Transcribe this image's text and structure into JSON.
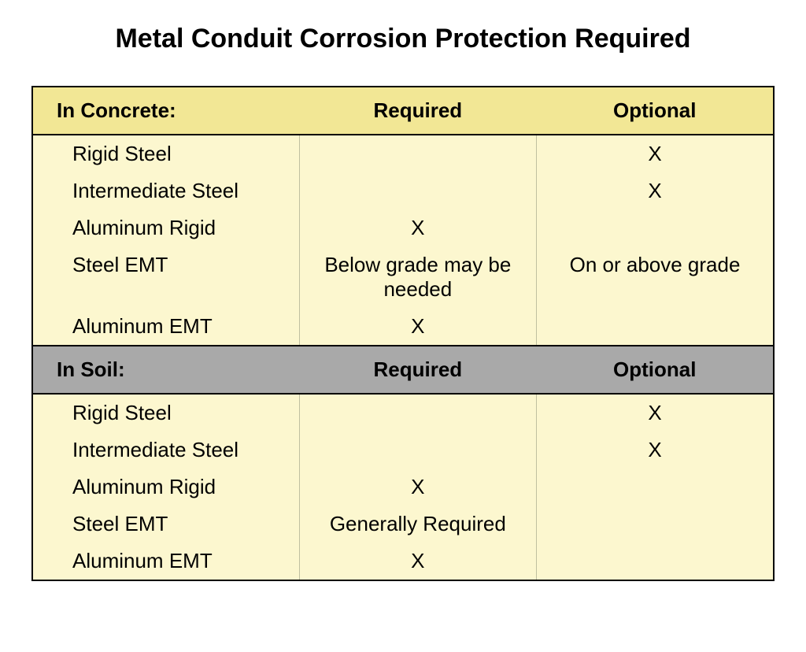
{
  "title": "Metal Conduit Corrosion Protection Required",
  "table": {
    "sections": [
      {
        "header": {
          "label": "In Concrete:",
          "col2": "Required",
          "col3": "Optional",
          "bg_class": "header-row-concrete"
        },
        "rows": [
          {
            "label": "Rigid Steel",
            "required": "",
            "optional": "X"
          },
          {
            "label": "Intermediate Steel",
            "required": "",
            "optional": "X"
          },
          {
            "label": "Aluminum Rigid",
            "required": "X",
            "optional": ""
          },
          {
            "label": "Steel EMT",
            "required": "Below grade may be needed",
            "optional": "On or above grade"
          },
          {
            "label": "Aluminum EMT",
            "required": "X",
            "optional": ""
          }
        ]
      },
      {
        "header": {
          "label": "In Soil:",
          "col2": "Required",
          "col3": "Optional",
          "bg_class": "header-row-soil"
        },
        "rows": [
          {
            "label": "Rigid Steel",
            "required": "",
            "optional": "X"
          },
          {
            "label": "Intermediate Steel",
            "required": "",
            "optional": "X"
          },
          {
            "label": "Aluminum Rigid",
            "required": "X",
            "optional": ""
          },
          {
            "label": "Steel EMT",
            "required": "Generally Required",
            "optional": ""
          },
          {
            "label": "Aluminum EMT",
            "required": "X",
            "optional": ""
          }
        ]
      }
    ]
  },
  "colors": {
    "title_color": "#000000",
    "header_concrete_bg": "#f2e795",
    "header_soil_bg": "#a9a9a9",
    "data_row_bg": "#fcf7cf",
    "border_color": "#000000",
    "cell_border_color": "#c0c0a0"
  },
  "fonts": {
    "title_size": 34,
    "cell_size": 26,
    "family": "Verdana"
  },
  "layout": {
    "col_label_width": "36%",
    "col_required_width": "32%",
    "col_optional_width": "32%"
  }
}
